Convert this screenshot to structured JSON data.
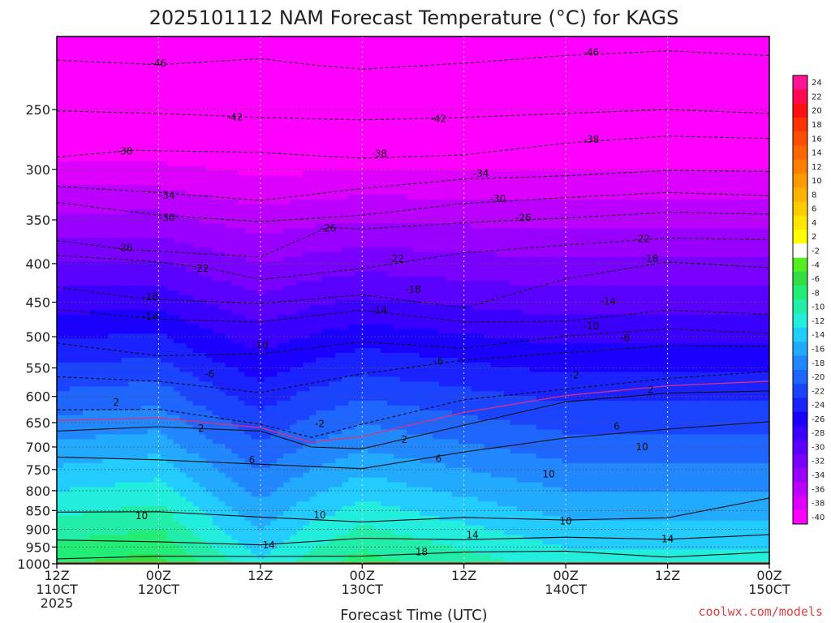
{
  "chart_data": {
    "type": "heatmap",
    "title": "2025101112 NAM Forecast Temperature (°C) for KAGS",
    "xlabel": "Forecast Time (UTC)",
    "ylabel": "",
    "y_scale": "log",
    "y_inverted": true,
    "x_range_hours": [
      0,
      84
    ],
    "y_range_hpa": [
      1000,
      200
    ],
    "x_ticks": [
      {
        "hour": 0,
        "lines": [
          "12Z",
          "110CT",
          "2025"
        ]
      },
      {
        "hour": 12,
        "lines": [
          "00Z",
          "120CT"
        ]
      },
      {
        "hour": 24,
        "lines": [
          "12Z"
        ]
      },
      {
        "hour": 36,
        "lines": [
          "00Z",
          "130CT"
        ]
      },
      {
        "hour": 48,
        "lines": [
          "12Z"
        ]
      },
      {
        "hour": 60,
        "lines": [
          "00Z",
          "140CT"
        ]
      },
      {
        "hour": 72,
        "lines": [
          "12Z"
        ]
      },
      {
        "hour": 84,
        "lines": [
          "00Z",
          "150CT"
        ]
      }
    ],
    "y_ticks": [
      250,
      300,
      350,
      400,
      450,
      500,
      550,
      600,
      650,
      700,
      750,
      800,
      850,
      900,
      950,
      1000
    ],
    "colorbar": {
      "labels": [
        "24",
        "22",
        "20",
        "18",
        "16",
        "14",
        "12",
        "10",
        "8",
        "6",
        "4",
        "2",
        "-2",
        "-4",
        "-6",
        "-8",
        "-10",
        "-12",
        "-14",
        "-16",
        "-18",
        "-20",
        "-22",
        "-24",
        "-26",
        "-28",
        "-30",
        "-32",
        "-34",
        "-36",
        "-38",
        "-40"
      ],
      "colors": [
        "#ff1493",
        "#ff0a50",
        "#ff1010",
        "#ff3300",
        "#ff4d00",
        "#ff6600",
        "#ff8000",
        "#ff9a00",
        "#ffb300",
        "#ffcc00",
        "#ffe600",
        "#ffff00",
        "#ffffff",
        "#55ee22",
        "#33dd44",
        "#22ee77",
        "#22eeaa",
        "#22eedd",
        "#22ccff",
        "#22aaff",
        "#2288ff",
        "#1f66ff",
        "#1a44ff",
        "#1a22ff",
        "#1a00ff",
        "#3a00ff",
        "#5a00ff",
        "#7a00ff",
        "#9a00ff",
        "#bb00ff",
        "#dd00ff",
        "#ff00ff"
      ]
    },
    "contours": [
      {
        "value": -46,
        "label": "-46",
        "points": [
          [
            0,
            215
          ],
          [
            12,
            218
          ],
          [
            24,
            214
          ],
          [
            30,
            218
          ],
          [
            36,
            221
          ],
          [
            48,
            217
          ],
          [
            60,
            212
          ],
          [
            72,
            209
          ],
          [
            84,
            212
          ]
        ],
        "label_at": [
          [
            12,
            217
          ],
          [
            63,
            210
          ]
        ]
      },
      {
        "value": -42,
        "label": "-42",
        "points": [
          [
            0,
            251
          ],
          [
            12,
            253
          ],
          [
            24,
            256
          ],
          [
            36,
            258
          ],
          [
            48,
            256
          ],
          [
            60,
            253
          ],
          [
            72,
            250
          ],
          [
            84,
            253
          ]
        ],
        "label_at": [
          [
            21,
            256
          ],
          [
            45,
            257
          ]
        ]
      },
      {
        "value": -38,
        "label": "-38",
        "points": [
          [
            0,
            289
          ],
          [
            9,
            283
          ],
          [
            24,
            285
          ],
          [
            36,
            290
          ],
          [
            48,
            287
          ],
          [
            60,
            277
          ],
          [
            72,
            271
          ],
          [
            84,
            273
          ]
        ],
        "label_at": [
          [
            8,
            284
          ],
          [
            38,
            286
          ],
          [
            63,
            274
          ]
        ]
      },
      {
        "value": -34,
        "label": "-34",
        "points": [
          [
            0,
            316
          ],
          [
            12,
            322
          ],
          [
            24,
            330
          ],
          [
            36,
            318
          ],
          [
            48,
            309
          ],
          [
            60,
            306
          ],
          [
            72,
            301
          ],
          [
            84,
            302
          ]
        ],
        "label_at": [
          [
            13,
            325
          ],
          [
            50,
            304
          ]
        ]
      },
      {
        "value": -30,
        "label": "-30",
        "points": [
          [
            0,
            332
          ],
          [
            12,
            345
          ],
          [
            24,
            352
          ],
          [
            36,
            345
          ],
          [
            48,
            333
          ],
          [
            60,
            327
          ],
          [
            72,
            322
          ],
          [
            84,
            325
          ]
        ],
        "label_at": [
          [
            13,
            348
          ],
          [
            52,
            328
          ]
        ]
      },
      {
        "value": -26,
        "label": "-26",
        "points": [
          [
            0,
            373
          ],
          [
            8,
            383
          ],
          [
            24,
            392
          ],
          [
            32,
            358
          ],
          [
            36,
            360
          ],
          [
            48,
            353
          ],
          [
            60,
            348
          ],
          [
            72,
            342
          ],
          [
            84,
            344
          ]
        ],
        "label_at": [
          [
            8,
            381
          ],
          [
            32,
            359
          ],
          [
            55,
            348
          ]
        ]
      },
      {
        "value": -22,
        "label": "-22",
        "points": [
          [
            0,
            390
          ],
          [
            12,
            398
          ],
          [
            18,
            406
          ],
          [
            24,
            420
          ],
          [
            36,
            406
          ],
          [
            48,
            387
          ],
          [
            60,
            378
          ],
          [
            72,
            370
          ],
          [
            84,
            372
          ]
        ],
        "label_at": [
          [
            17,
            406
          ],
          [
            40,
            394
          ],
          [
            69,
            371
          ]
        ]
      },
      {
        "value": -18,
        "label": "-18",
        "points": [
          [
            0,
            430
          ],
          [
            10,
            445
          ],
          [
            24,
            452
          ],
          [
            36,
            440
          ],
          [
            48,
            458
          ],
          [
            60,
            419
          ],
          [
            72,
            398
          ],
          [
            84,
            405
          ]
        ],
        "label_at": [
          [
            11,
            443
          ],
          [
            42,
            433
          ],
          [
            70,
            394
          ]
        ]
      },
      {
        "value": -14,
        "label": "-14",
        "points": [
          [
            0,
            460
          ],
          [
            12,
            474
          ],
          [
            24,
            478
          ],
          [
            36,
            461
          ],
          [
            48,
            478
          ],
          [
            60,
            477
          ],
          [
            72,
            461
          ],
          [
            84,
            467
          ]
        ],
        "label_at": [
          [
            11,
            470
          ],
          [
            38,
            461
          ],
          [
            65,
            449
          ]
        ]
      },
      {
        "value": -10,
        "label": "-10",
        "points": [
          [
            0,
            510
          ],
          [
            12,
            530
          ],
          [
            24,
            527
          ],
          [
            36,
            508
          ],
          [
            48,
            518
          ],
          [
            60,
            499
          ],
          [
            72,
            488
          ],
          [
            84,
            495
          ]
        ],
        "label_at": [
          [
            24,
            513
          ],
          [
            63,
            484
          ]
        ]
      },
      {
        "value": -6,
        "label": "-6",
        "points": [
          [
            0,
            565
          ],
          [
            12,
            573
          ],
          [
            24,
            593
          ],
          [
            36,
            560
          ],
          [
            48,
            537
          ],
          [
            60,
            525
          ],
          [
            72,
            514
          ],
          [
            84,
            515
          ]
        ],
        "label_at": [
          [
            18,
            560
          ],
          [
            45,
            539
          ],
          [
            67,
            502
          ]
        ]
      },
      {
        "value": -2,
        "label": "-2",
        "points": [
          [
            0,
            625
          ],
          [
            12,
            624
          ],
          [
            24,
            653
          ],
          [
            30,
            680
          ],
          [
            36,
            653
          ],
          [
            48,
            606
          ],
          [
            60,
            587
          ],
          [
            72,
            568
          ],
          [
            84,
            556
          ]
        ],
        "label_at": [
          [
            31,
            652
          ],
          [
            61,
            562
          ]
        ]
      },
      {
        "value": 2,
        "label": "2",
        "points": [
          [
            0,
            667
          ],
          [
            12,
            658
          ],
          [
            24,
            667
          ],
          [
            30,
            700
          ],
          [
            36,
            704
          ],
          [
            48,
            655
          ],
          [
            60,
            610
          ],
          [
            72,
            594
          ],
          [
            84,
            590
          ]
        ],
        "label_at": [
          [
            7,
            611
          ],
          [
            17,
            661
          ],
          [
            41,
            685
          ],
          [
            70,
            588
          ]
        ]
      },
      {
        "value": 6,
        "label": "6",
        "points": [
          [
            0,
            722
          ],
          [
            12,
            728
          ],
          [
            24,
            738
          ],
          [
            36,
            748
          ],
          [
            48,
            711
          ],
          [
            60,
            681
          ],
          [
            72,
            663
          ],
          [
            84,
            648
          ]
        ],
        "label_at": [
          [
            23,
            728
          ],
          [
            45,
            726
          ],
          [
            66,
            657
          ]
        ]
      },
      {
        "value": 10,
        "label": "10",
        "points": [
          [
            0,
            854
          ],
          [
            12,
            853
          ],
          [
            24,
            867
          ],
          [
            36,
            880
          ],
          [
            48,
            868
          ],
          [
            60,
            875
          ],
          [
            72,
            869
          ],
          [
            84,
            818
          ]
        ],
        "label_at": [
          [
            10,
            864
          ],
          [
            31,
            862
          ],
          [
            60,
            878
          ],
          [
            69,
            700
          ],
          [
            58,
            761
          ]
        ]
      },
      {
        "value": 14,
        "label": "14",
        "points": [
          [
            0,
            930
          ],
          [
            12,
            935
          ],
          [
            24,
            944
          ],
          [
            36,
            925
          ],
          [
            48,
            929
          ],
          [
            60,
            922
          ],
          [
            72,
            928
          ],
          [
            84,
            915
          ]
        ],
        "label_at": [
          [
            25,
            945
          ],
          [
            49,
            916
          ],
          [
            72,
            927
          ]
        ]
      },
      {
        "value": 18,
        "label": "18",
        "points": [
          [
            0,
            985
          ],
          [
            12,
            977
          ],
          [
            24,
            978
          ],
          [
            36,
            977
          ],
          [
            48,
            965
          ],
          [
            60,
            962
          ],
          [
            72,
            980
          ],
          [
            84,
            965
          ]
        ],
        "label_at": [
          [
            43,
            965
          ]
        ]
      }
    ]
  },
  "credit": "coolwx.com/models"
}
